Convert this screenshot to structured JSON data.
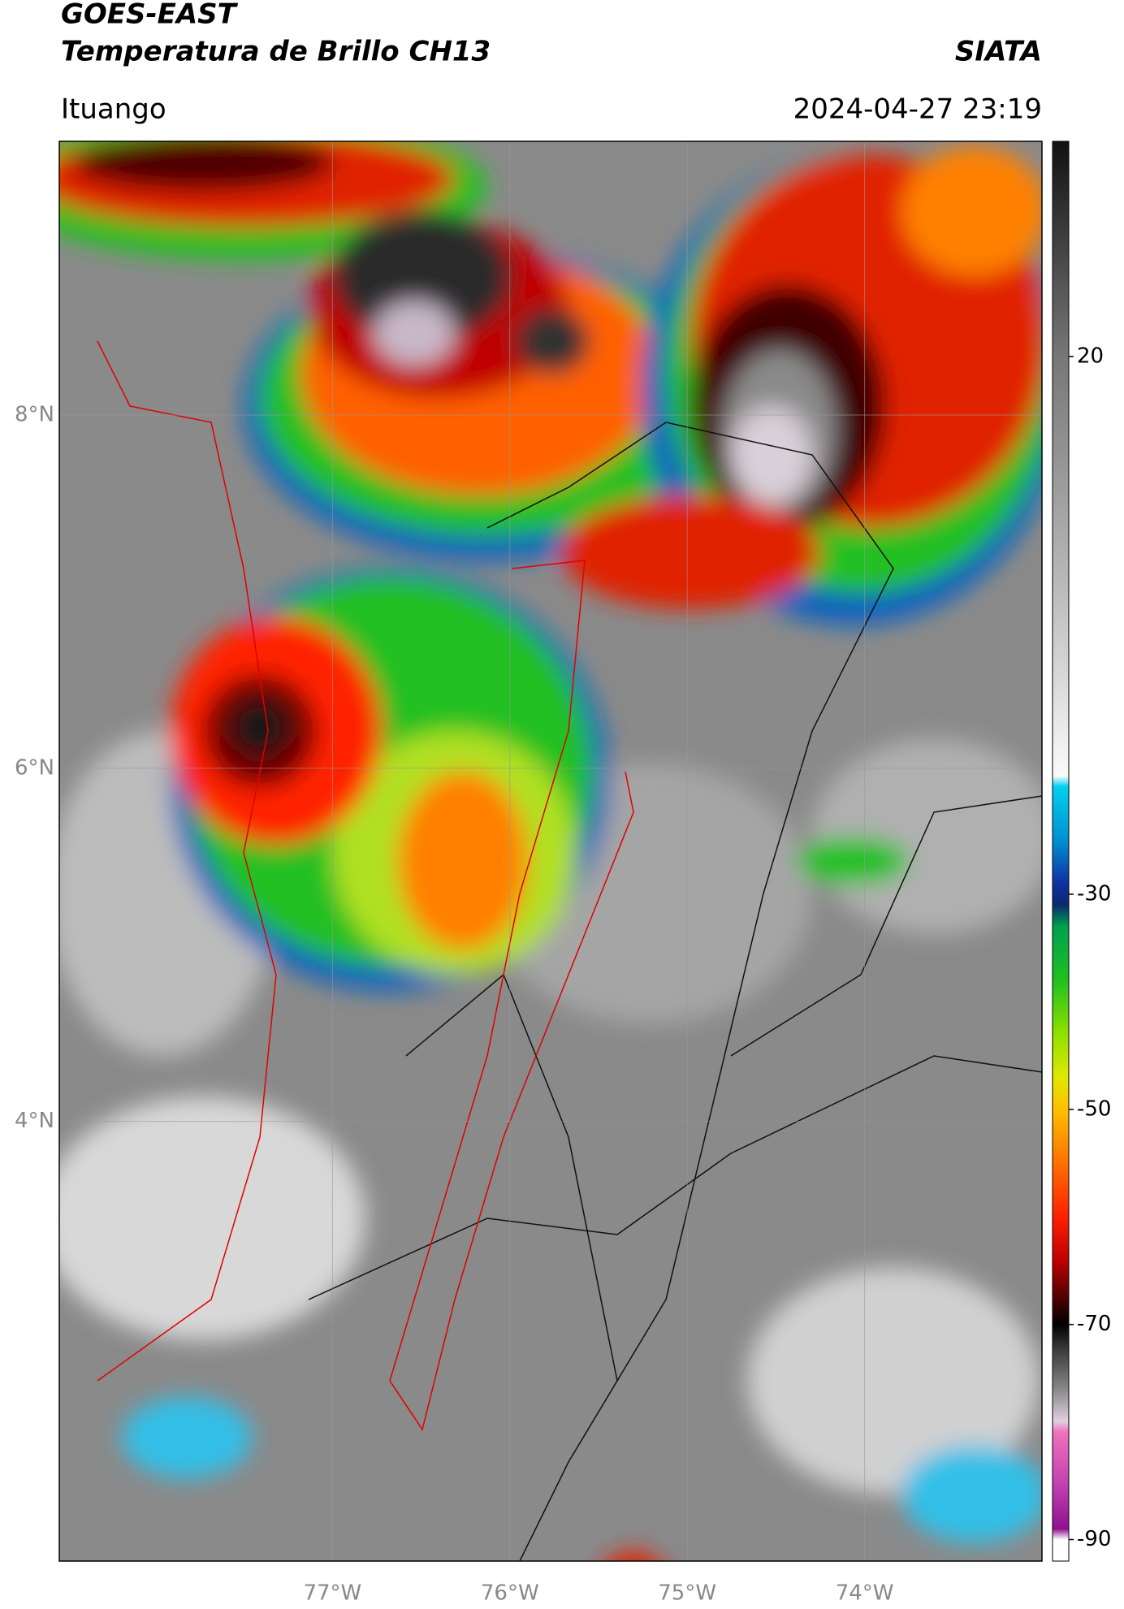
{
  "header": {
    "title": "GOES-EAST",
    "subtitle": "Temperatura de Brillo CH13",
    "source": "SIATA",
    "location": "Ituango",
    "datetime": "2024-04-27 23:19"
  },
  "map": {
    "type": "map",
    "lat_range": [
      1.51,
      9.55
    ],
    "lon_range": [
      -78.54,
      -73.0
    ],
    "grid": true,
    "lat_ticks": [
      {
        "value": 8,
        "label": "8°N"
      },
      {
        "value": 6,
        "label": "6°N"
      },
      {
        "value": 4,
        "label": "4°N"
      }
    ],
    "lon_ticks": [
      {
        "value": -77,
        "label": "77°W"
      },
      {
        "value": -76,
        "label": "76°W"
      },
      {
        "value": -75,
        "label": "75°W"
      },
      {
        "value": -74,
        "label": "74°W"
      }
    ]
  },
  "colorbar": {
    "range": [
      -92,
      40
    ],
    "ticks": [
      20,
      -30,
      -50,
      -70,
      -90
    ],
    "stops": [
      {
        "value": 40,
        "color": "#111111"
      },
      {
        "value": 30,
        "color": "#444444"
      },
      {
        "value": 20,
        "color": "#777777"
      },
      {
        "value": 0,
        "color": "#b5b5b5"
      },
      {
        "value": -19,
        "color": "#fafafa"
      },
      {
        "value": -20,
        "color": "#00d0f0"
      },
      {
        "value": -25,
        "color": "#0090d0"
      },
      {
        "value": -29,
        "color": "#1030a0"
      },
      {
        "value": -31,
        "color": "#0a2a70"
      },
      {
        "value": -33,
        "color": "#00a050"
      },
      {
        "value": -38,
        "color": "#20c020"
      },
      {
        "value": -43,
        "color": "#90e000"
      },
      {
        "value": -47,
        "color": "#e0e800"
      },
      {
        "value": -50,
        "color": "#ffc000"
      },
      {
        "value": -55,
        "color": "#ff7000"
      },
      {
        "value": -60,
        "color": "#ff2000"
      },
      {
        "value": -64,
        "color": "#c00000"
      },
      {
        "value": -67,
        "color": "#600000"
      },
      {
        "value": -70,
        "color": "#000000"
      },
      {
        "value": -72,
        "color": "#333333"
      },
      {
        "value": -76,
        "color": "#888888"
      },
      {
        "value": -79,
        "color": "#e0d0e0"
      },
      {
        "value": -80,
        "color": "#f070c0"
      },
      {
        "value": -85,
        "color": "#c040b0"
      },
      {
        "value": -89,
        "color": "#901090"
      },
      {
        "value": -90,
        "color": "#ffffff"
      },
      {
        "value": -92,
        "color": "#ffffff"
      }
    ]
  }
}
